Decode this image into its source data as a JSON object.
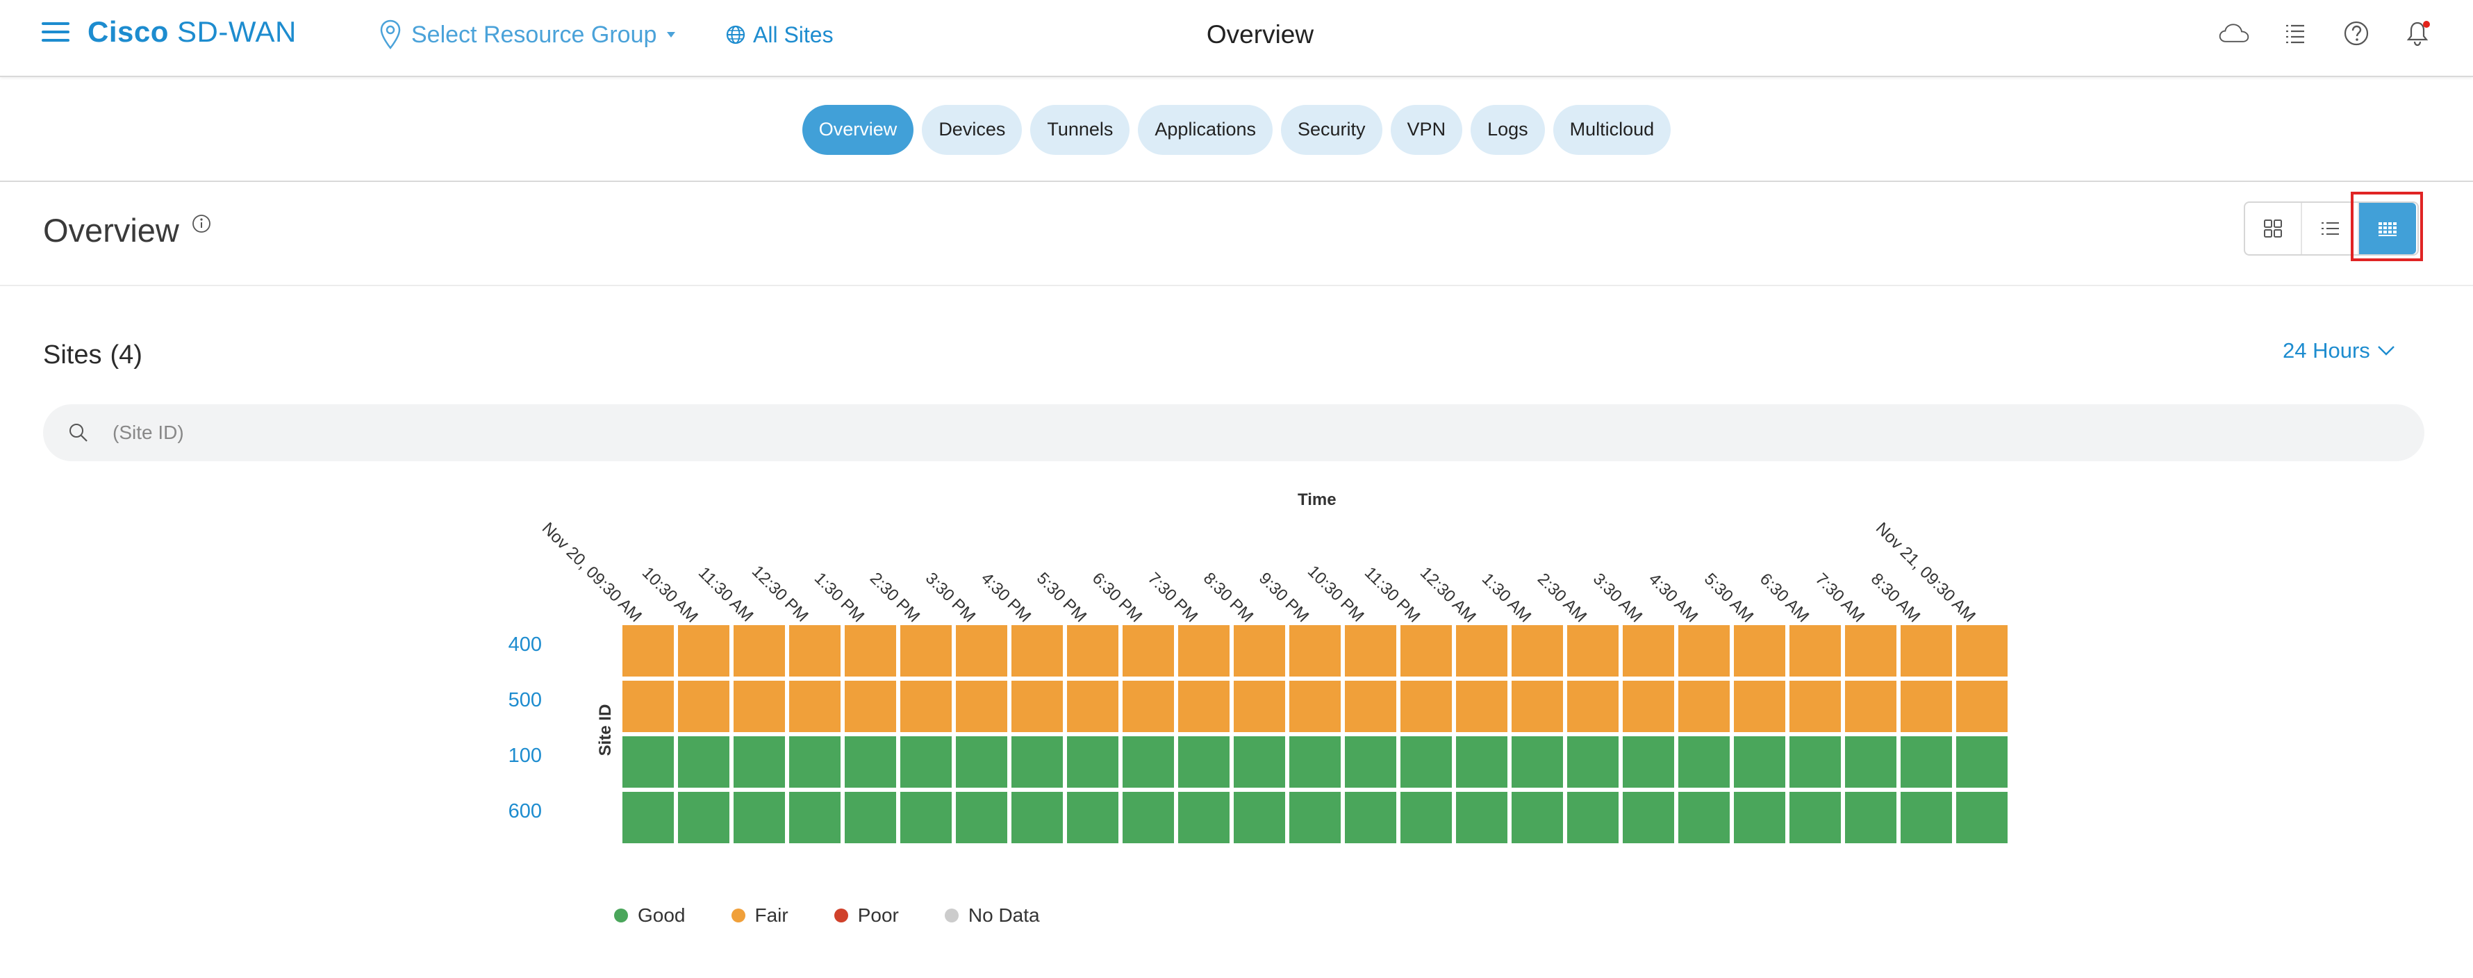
{
  "header": {
    "brand_bold": "Cisco",
    "brand_light": "SD-WAN",
    "resource_group": "Select Resource Group",
    "all_sites": "All Sites",
    "title": "Overview"
  },
  "tabs": [
    {
      "label": "Overview",
      "active": true
    },
    {
      "label": "Devices",
      "active": false
    },
    {
      "label": "Tunnels",
      "active": false
    },
    {
      "label": "Applications",
      "active": false
    },
    {
      "label": "Security",
      "active": false
    },
    {
      "label": "VPN",
      "active": false
    },
    {
      "label": "Logs",
      "active": false
    },
    {
      "label": "Multicloud",
      "active": false
    }
  ],
  "subheader": {
    "title": "Overview",
    "view_modes": [
      "grid-view-icon",
      "list-view-icon",
      "heatmap-view-icon"
    ],
    "active_view": "heatmap-view-icon"
  },
  "sites": {
    "title": "Sites",
    "count": "(4)",
    "time_range": "24 Hours",
    "search_placeholder": "(Site ID)"
  },
  "colors": {
    "accent": "#1d8ccf",
    "good": "#4aa65b",
    "fair": "#f0a03a",
    "poor": "#d0412b",
    "nodata": "#cccccc"
  },
  "chart_data": {
    "type": "heatmap",
    "title": "",
    "xlabel": "Time",
    "ylabel": "Site ID",
    "x": [
      "Nov 20, 09:30 AM",
      "10:30 AM",
      "11:30 AM",
      "12:30 PM",
      "1:30 PM",
      "2:30 PM",
      "3:30 PM",
      "4:30 PM",
      "5:30 PM",
      "6:30 PM",
      "7:30 PM",
      "8:30 PM",
      "9:30 PM",
      "10:30 PM",
      "11:30 PM",
      "12:30 AM",
      "1:30 AM",
      "2:30 AM",
      "3:30 AM",
      "4:30 AM",
      "5:30 AM",
      "6:30 AM",
      "7:30 AM",
      "8:30 AM",
      "Nov 21, 09:30 AM"
    ],
    "y": [
      "400",
      "500",
      "100",
      "600"
    ],
    "values": [
      [
        "Fair",
        "Fair",
        "Fair",
        "Fair",
        "Fair",
        "Fair",
        "Fair",
        "Fair",
        "Fair",
        "Fair",
        "Fair",
        "Fair",
        "Fair",
        "Fair",
        "Fair",
        "Fair",
        "Fair",
        "Fair",
        "Fair",
        "Fair",
        "Fair",
        "Fair",
        "Fair",
        "Fair",
        "Fair"
      ],
      [
        "Fair",
        "Fair",
        "Fair",
        "Fair",
        "Fair",
        "Fair",
        "Fair",
        "Fair",
        "Fair",
        "Fair",
        "Fair",
        "Fair",
        "Fair",
        "Fair",
        "Fair",
        "Fair",
        "Fair",
        "Fair",
        "Fair",
        "Fair",
        "Fair",
        "Fair",
        "Fair",
        "Fair",
        "Fair"
      ],
      [
        "Good",
        "Good",
        "Good",
        "Good",
        "Good",
        "Good",
        "Good",
        "Good",
        "Good",
        "Good",
        "Good",
        "Good",
        "Good",
        "Good",
        "Good",
        "Good",
        "Good",
        "Good",
        "Good",
        "Good",
        "Good",
        "Good",
        "Good",
        "Good",
        "Good"
      ],
      [
        "Good",
        "Good",
        "Good",
        "Good",
        "Good",
        "Good",
        "Good",
        "Good",
        "Good",
        "Good",
        "Good",
        "Good",
        "Good",
        "Good",
        "Good",
        "Good",
        "Good",
        "Good",
        "Good",
        "Good",
        "Good",
        "Good",
        "Good",
        "Good",
        "Good"
      ]
    ],
    "legend": [
      {
        "label": "Good",
        "color": "#4aa65b"
      },
      {
        "label": "Fair",
        "color": "#f0a03a"
      },
      {
        "label": "Poor",
        "color": "#d0412b"
      },
      {
        "label": "No Data",
        "color": "#cccccc"
      }
    ],
    "legend_position": "bottom-left"
  }
}
